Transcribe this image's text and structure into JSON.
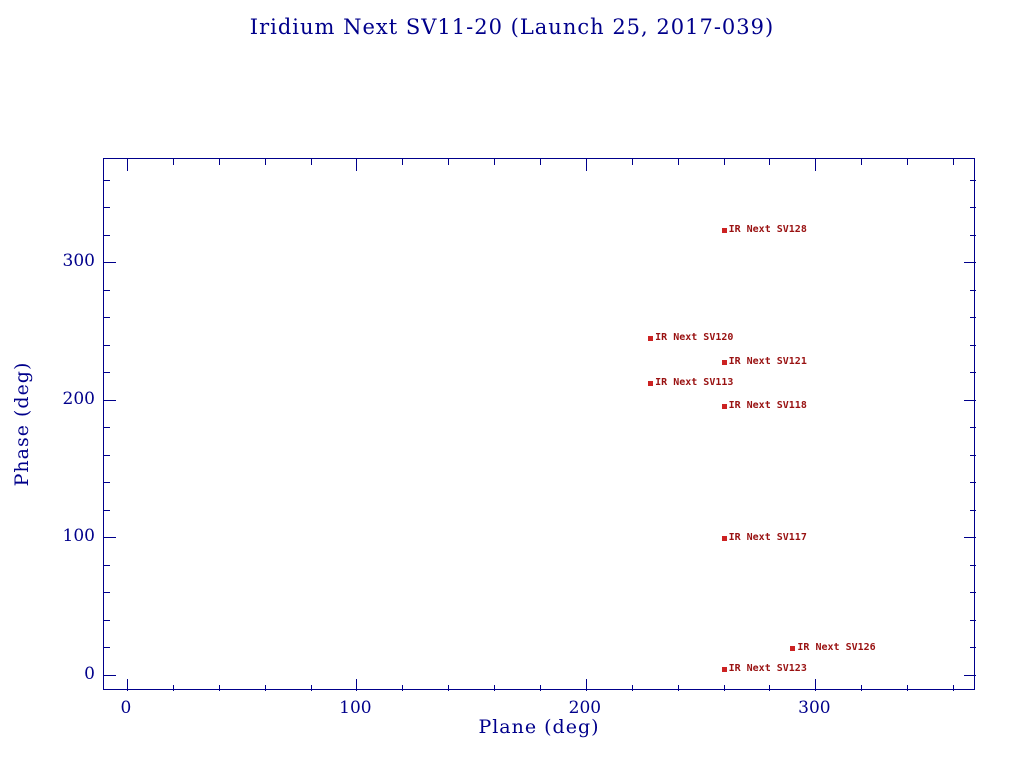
{
  "colors": {
    "axis": "#00008b",
    "marker": "#cc2222",
    "point_label": "#991111",
    "background": "#ffffff"
  },
  "chart_data": {
    "type": "scatter",
    "title": "Iridium Next SV11-20 (Launch 25, 2017-039)",
    "xlabel": "Plane (deg)",
    "ylabel": "Phase (deg)",
    "xlim": [
      -10,
      370
    ],
    "ylim": [
      -12,
      375
    ],
    "xticks": [
      0,
      100,
      200,
      300
    ],
    "yticks": [
      0,
      100,
      200,
      300
    ],
    "minor_tick_step": 20,
    "grid": false,
    "legend": "none",
    "marker_shape": "small-red-square",
    "points": [
      {
        "label": "IR Next SV128",
        "plane": 260,
        "phase": 323
      },
      {
        "label": "IR Next SV120",
        "plane": 228,
        "phase": 245
      },
      {
        "label": "IR Next SV121",
        "plane": 260,
        "phase": 227
      },
      {
        "label": "IR Next SV113",
        "plane": 228,
        "phase": 212
      },
      {
        "label": "IR Next SV118",
        "plane": 260,
        "phase": 195
      },
      {
        "label": "IR Next SV117",
        "plane": 260,
        "phase": 99
      },
      {
        "label": "IR Next SV126",
        "plane": 290,
        "phase": 19
      },
      {
        "label": "IR Next SV123",
        "plane": 260,
        "phase": 4
      }
    ]
  }
}
